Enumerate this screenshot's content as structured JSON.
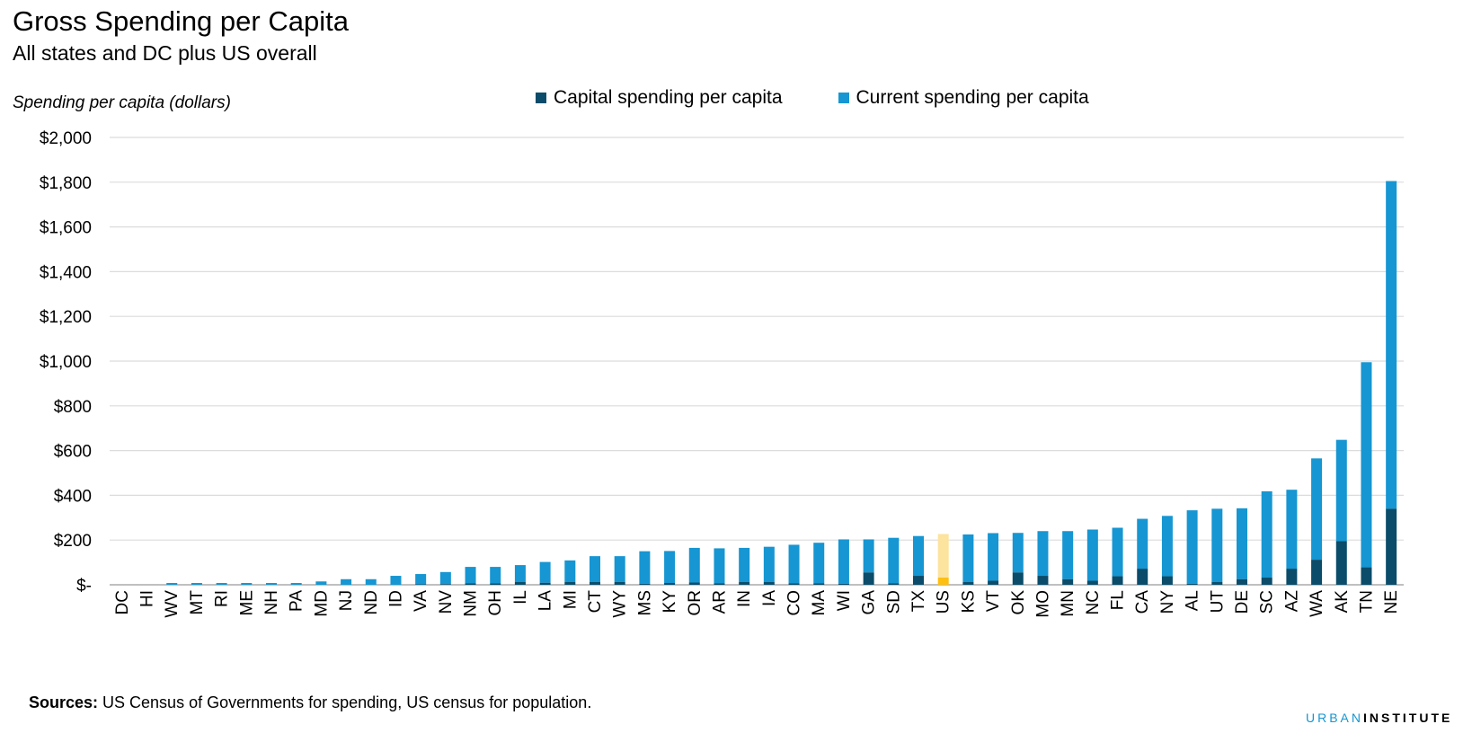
{
  "header": {
    "title": "Gross Spending per Capita",
    "subtitle": "All states and DC plus US overall"
  },
  "footer": {
    "sources_label": "Sources:",
    "sources_text": " US Census of Governments for spending, US census for population.",
    "brand_part1": "URBAN",
    "brand_part2": "INSTITUTE"
  },
  "colors": {
    "capital": "#0a4c6a",
    "current": "#1696d2",
    "us_capital": "#fdbf11",
    "us_current": "#fce39e",
    "grid": "#dcdcdc"
  },
  "chart_data": {
    "type": "bar",
    "stacked": true,
    "ylabel": "Spending per capita (dollars)",
    "xlabel": "",
    "ylim": [
      0,
      2000
    ],
    "ytick_values": [
      0,
      200,
      400,
      600,
      800,
      1000,
      1200,
      1400,
      1600,
      1800,
      2000
    ],
    "ytick_labels": [
      "$-",
      "$200",
      "$400",
      "$600",
      "$800",
      "$1,000",
      "$1,200",
      "$1,400",
      "$1,600",
      "$1,800",
      "$2,000"
    ],
    "grid": true,
    "legend_position": "top",
    "highlight_category": "US",
    "categories": [
      "DC",
      "HI",
      "WV",
      "MT",
      "RI",
      "ME",
      "NH",
      "PA",
      "MD",
      "NJ",
      "ND",
      "ID",
      "VA",
      "NV",
      "NM",
      "OH",
      "IL",
      "LA",
      "MI",
      "CT",
      "WY",
      "MS",
      "KY",
      "OR",
      "AR",
      "IN",
      "IA",
      "CO",
      "MA",
      "WI",
      "GA",
      "SD",
      "TX",
      "US",
      "KS",
      "VT",
      "OK",
      "MO",
      "MN",
      "NC",
      "FL",
      "CA",
      "NY",
      "AL",
      "UT",
      "DE",
      "SC",
      "AZ",
      "WA",
      "AK",
      "TN",
      "NE"
    ],
    "series": [
      {
        "name": "Capital spending per capita",
        "values": [
          0,
          0,
          0,
          0,
          0,
          0,
          0,
          0,
          0,
          0,
          0,
          0,
          2,
          3,
          6,
          7,
          12,
          9,
          12,
          12,
          13,
          5,
          8,
          10,
          6,
          12,
          12,
          6,
          6,
          5,
          55,
          6,
          40,
          32,
          12,
          18,
          55,
          40,
          25,
          18,
          38,
          72,
          38,
          5,
          12,
          25,
          32,
          72,
          112,
          195,
          78,
          340
        ]
      },
      {
        "name": "Current spending per capita",
        "values": [
          0,
          0,
          8,
          8,
          8,
          8,
          8,
          8,
          15,
          25,
          25,
          40,
          46,
          54,
          74,
          73,
          76,
          93,
          97,
          116,
          115,
          145,
          143,
          155,
          157,
          153,
          158,
          173,
          182,
          198,
          148,
          204,
          178,
          195,
          213,
          213,
          177,
          200,
          215,
          229,
          217,
          223,
          270,
          328,
          328,
          317,
          386,
          353,
          453,
          453,
          917,
          1465
        ]
      }
    ]
  }
}
